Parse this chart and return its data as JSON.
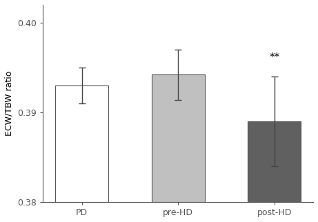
{
  "categories": [
    "PD",
    "pre-HD",
    "post-HD"
  ],
  "values": [
    0.393,
    0.3942,
    0.389
  ],
  "errors": [
    0.002,
    0.0028,
    0.005
  ],
  "bar_colors": [
    "#ffffff",
    "#c0c0c0",
    "#606060"
  ],
  "bar_edgecolors": [
    "#555555",
    "#555555",
    "#555555"
  ],
  "ylabel": "ECW/TBW ratio",
  "ylim": [
    0.38,
    0.402
  ],
  "yticks": [
    0.38,
    0.39,
    0.4
  ],
  "ytick_labels": [
    "0.38",
    "0.39",
    "0.40"
  ],
  "annotation": "**",
  "annotation_index": 2,
  "background_color": "#ffffff",
  "bar_width": 0.55,
  "figsize": [
    4.61,
    3.22
  ],
  "dpi": 100,
  "tick_fontsize": 9,
  "label_fontsize": 9,
  "annotation_fontsize": 11
}
